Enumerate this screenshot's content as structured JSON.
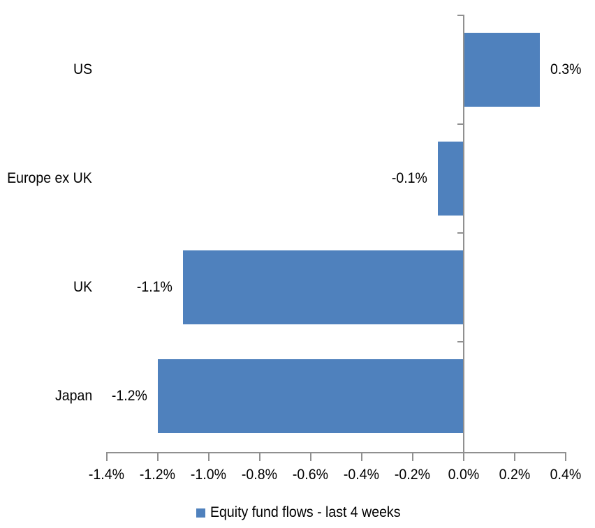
{
  "chart_data": {
    "type": "bar",
    "orientation": "horizontal",
    "title": "",
    "categories": [
      "US",
      "Europe ex UK",
      "UK",
      "Japan"
    ],
    "series": [
      {
        "name": "Equity fund flows - last 4 weeks",
        "values": [
          0.3,
          -0.1,
          -1.1,
          -1.2
        ],
        "data_labels": [
          "0.3%",
          "-0.1%",
          "-1.1%",
          "-1.2%"
        ],
        "color": "#4F81BD"
      }
    ],
    "xlabel": "",
    "ylabel": "",
    "xlim": [
      -1.4,
      0.4
    ],
    "x_ticks": [
      -1.4,
      -1.2,
      -1.0,
      -0.8,
      -0.6,
      -0.4,
      -0.2,
      0.0,
      0.2,
      0.4
    ],
    "x_tick_labels": [
      "-1.4%",
      "-1.2%",
      "-1.0%",
      "-0.8%",
      "-0.6%",
      "-0.4%",
      "-0.2%",
      "0.0%",
      "0.2%",
      "0.4%"
    ],
    "grid": false,
    "legend_position": "bottom",
    "axis_color": "#909090",
    "text_color": "#000000",
    "background": "#FFFFFF"
  },
  "legend": {
    "items": [
      {
        "label": "Equity fund flows - last 4 weeks",
        "color": "#4F81BD"
      }
    ]
  }
}
